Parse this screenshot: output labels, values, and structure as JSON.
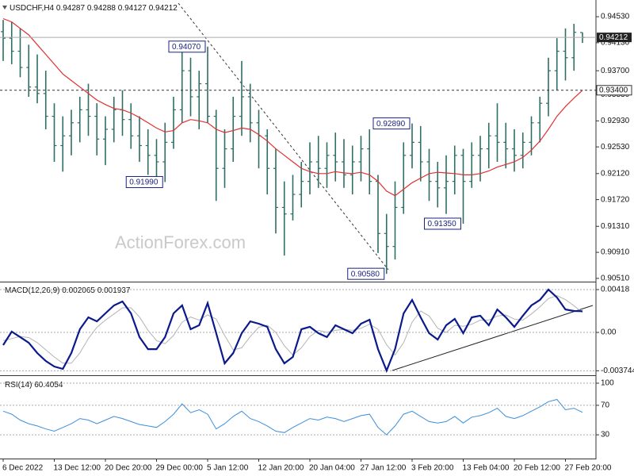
{
  "chart_data": [
    {
      "type": "ohlc",
      "title": "USDCHF,H4",
      "watermark": "ActionForex.com",
      "categories": [
        "6 Dec 2022",
        null,
        null,
        null,
        null,
        null,
        "13 Dec 12:00",
        null,
        null,
        null,
        null,
        null,
        "20 Dec 20:00",
        null,
        null,
        null,
        null,
        null,
        "29 Dec 00:00",
        null,
        null,
        null,
        null,
        null,
        "5 Jan 12:00",
        null,
        null,
        null,
        null,
        null,
        "12 Jan 20:00",
        null,
        null,
        null,
        null,
        null,
        "20 Jan 04:00",
        null,
        null,
        null,
        null,
        null,
        "27 Jan 12:00",
        null,
        null,
        null,
        null,
        null,
        "3 Feb 20:00",
        null,
        null,
        null,
        null,
        null,
        "13 Feb 04:00",
        null,
        null,
        null,
        null,
        null,
        "20 Feb 12:00",
        null,
        null,
        null,
        null,
        null,
        "27 Feb 20:00",
        null,
        null
      ],
      "open": [
        0.943,
        0.942,
        0.94,
        0.9375,
        0.9345,
        0.9335,
        0.93,
        0.9255,
        0.927,
        0.929,
        0.931,
        0.93,
        0.9265,
        0.928,
        0.931,
        0.9295,
        0.927,
        0.9255,
        0.924,
        0.923,
        0.926,
        0.931,
        0.937,
        0.933,
        0.935,
        0.93,
        0.922,
        0.925,
        0.93,
        0.933,
        0.929,
        0.927,
        0.922,
        0.916,
        0.915,
        0.918,
        0.92,
        0.923,
        0.922,
        0.924,
        0.923,
        0.921,
        0.923,
        0.925,
        0.92,
        0.912,
        0.91,
        0.916,
        0.924,
        0.926,
        0.923,
        0.92,
        0.919,
        0.92,
        0.924,
        0.92,
        0.924,
        0.925,
        0.927,
        0.926,
        0.925,
        0.924,
        0.926,
        0.929,
        0.932,
        0.937,
        0.94,
        0.939,
        0.94287
      ],
      "high": [
        0.9448,
        0.9445,
        0.9435,
        0.941,
        0.9395,
        0.937,
        0.932,
        0.93,
        0.931,
        0.933,
        0.935,
        0.932,
        0.93,
        0.933,
        0.934,
        0.932,
        0.93,
        0.928,
        0.9265,
        0.929,
        0.933,
        0.94,
        0.939,
        0.937,
        0.9407,
        0.931,
        0.928,
        0.933,
        0.9385,
        0.935,
        0.931,
        0.928,
        0.925,
        0.92,
        0.921,
        0.923,
        0.926,
        0.927,
        0.926,
        0.9275,
        0.9265,
        0.9255,
        0.927,
        0.928,
        0.921,
        0.915,
        0.92,
        0.926,
        0.9289,
        0.9285,
        0.925,
        0.923,
        0.924,
        0.9255,
        0.925,
        0.926,
        0.927,
        0.929,
        0.932,
        0.929,
        0.928,
        0.9275,
        0.93,
        0.933,
        0.939,
        0.942,
        0.9435,
        0.9442,
        0.94288
      ],
      "low": [
        0.9385,
        0.938,
        0.936,
        0.933,
        0.932,
        0.928,
        0.923,
        0.9215,
        0.924,
        0.926,
        0.927,
        0.924,
        0.9225,
        0.926,
        0.927,
        0.925,
        0.923,
        0.921,
        0.9205,
        0.9199,
        0.925,
        0.929,
        0.93,
        0.928,
        0.929,
        0.917,
        0.919,
        0.923,
        0.927,
        0.926,
        0.922,
        0.918,
        0.912,
        0.9086,
        0.914,
        0.916,
        0.918,
        0.919,
        0.919,
        0.92,
        0.919,
        0.918,
        0.92,
        0.918,
        0.909,
        0.9058,
        0.908,
        0.915,
        0.922,
        0.92,
        0.917,
        0.916,
        0.915,
        0.918,
        0.9135,
        0.919,
        0.92,
        0.922,
        0.923,
        0.922,
        0.9215,
        0.922,
        0.924,
        0.926,
        0.93,
        0.934,
        0.9355,
        0.937,
        0.94127
      ],
      "close": [
        0.942,
        0.94,
        0.9375,
        0.9345,
        0.9335,
        0.93,
        0.9255,
        0.927,
        0.929,
        0.931,
        0.93,
        0.9265,
        0.928,
        0.931,
        0.9295,
        0.927,
        0.9255,
        0.924,
        0.923,
        0.926,
        0.931,
        0.937,
        0.933,
        0.935,
        0.93,
        0.922,
        0.925,
        0.93,
        0.933,
        0.929,
        0.927,
        0.922,
        0.916,
        0.915,
        0.918,
        0.92,
        0.923,
        0.922,
        0.924,
        0.923,
        0.921,
        0.923,
        0.925,
        0.92,
        0.912,
        0.91,
        0.916,
        0.924,
        0.926,
        0.923,
        0.92,
        0.919,
        0.92,
        0.924,
        0.92,
        0.924,
        0.925,
        0.927,
        0.926,
        0.925,
        0.924,
        0.926,
        0.929,
        0.932,
        0.937,
        0.94,
        0.939,
        0.9429,
        0.94212
      ],
      "color": "#2f6e64",
      "ma": {
        "color": "#e03030",
        "values": [
          0.945,
          0.9445,
          0.9435,
          0.9425,
          0.941,
          0.9395,
          0.938,
          0.9365,
          0.9355,
          0.9345,
          0.9335,
          0.9325,
          0.9318,
          0.9312,
          0.931,
          0.9305,
          0.9298,
          0.929,
          0.9282,
          0.9276,
          0.9278,
          0.929,
          0.9295,
          0.9293,
          0.929,
          0.928,
          0.9275,
          0.9278,
          0.9282,
          0.928,
          0.9272,
          0.9262,
          0.925,
          0.924,
          0.923,
          0.922,
          0.9215,
          0.9212,
          0.9212,
          0.9215,
          0.9213,
          0.9212,
          0.9214,
          0.921,
          0.92,
          0.9185,
          0.9178,
          0.9188,
          0.9198,
          0.9205,
          0.9212,
          0.9214,
          0.9213,
          0.9212,
          0.921,
          0.921,
          0.9212,
          0.9216,
          0.9222,
          0.9226,
          0.923,
          0.9237,
          0.9248,
          0.9262,
          0.928,
          0.93,
          0.9315,
          0.9328,
          0.934
        ]
      },
      "ylim": [
        0.9046,
        0.9475
      ],
      "yticks": [
        {
          "value": 0.9453,
          "label": "0.94530"
        },
        {
          "value": 0.9413,
          "label": "0.94130"
        },
        {
          "value": 0.937,
          "label": "0.93700"
        },
        {
          "value": 0.9333,
          "label": "0.93330"
        },
        {
          "value": 0.9293,
          "label": "0.92930"
        },
        {
          "value": 0.9253,
          "label": "0.92530"
        },
        {
          "value": 0.9212,
          "label": "0.92120"
        },
        {
          "value": 0.9172,
          "label": "0.91720"
        },
        {
          "value": 0.9131,
          "label": "0.91310"
        },
        {
          "value": 0.9091,
          "label": "0.90910"
        },
        {
          "value": 0.9051,
          "label": "0.90510"
        }
      ],
      "levels": [
        {
          "value": 0.934,
          "label": "0.93400"
        }
      ],
      "annotations": [
        {
          "value": 0.9407,
          "label": "0.94070",
          "bar": 24
        },
        {
          "value": 0.9199,
          "label": "0.91990",
          "bar": 19
        },
        {
          "value": 0.9289,
          "label": "0.92890",
          "bar": 48
        },
        {
          "value": 0.9135,
          "label": "0.91350",
          "bar": 54
        },
        {
          "value": 0.9058,
          "label": "0.90580",
          "bar": 45
        }
      ]
    },
    {
      "type": "macd",
      "title": "MACD(12,26,9)",
      "macd": {
        "color": "#0a1a8c",
        "values": [
          -0.00124,
          8e-05,
          -0.00046,
          -0.00101,
          -0.00201,
          -0.00279,
          -0.00333,
          -0.00356,
          -0.00201,
          0.00031,
          0.00147,
          0.00108,
          0.00186,
          0.00263,
          0.00302,
          0.00186,
          -0.00046,
          -0.00163,
          -0.00163,
          -0.00046,
          0.00186,
          0.00263,
          0.00031,
          0.0007,
          0.00286,
          -8e-05,
          -0.00302,
          -0.00201,
          -8e-05,
          0.00108,
          0.00085,
          0.00054,
          -0.00163,
          -0.00302,
          -0.0024,
          0.00031,
          0.00054,
          -8e-05,
          -0.00046,
          0.0007,
          0.00031,
          -8e-05,
          0.00085,
          0.00124,
          -0.00163,
          -0.00372,
          -0.00163,
          0.00186,
          0.00317,
          0.00147,
          -8e-05,
          -0.0007,
          0.0007,
          0.00132,
          -8e-05,
          0.00147,
          0.00163,
          0.0007,
          0.00224,
          0.00147,
          0.00054,
          0.00163,
          0.00263,
          0.00317,
          0.00418,
          0.00341,
          0.00224,
          0.00209,
          0.002065
        ]
      },
      "signal": {
        "color": "#b4b4b4",
        "values": [
          -0.0008,
          -0.0006,
          -0.0004,
          -0.0005,
          -0.001,
          -0.0017,
          -0.0024,
          -0.003,
          -0.003,
          -0.002,
          -0.0006,
          0.0005,
          0.0012,
          0.0018,
          0.0024,
          0.0024,
          0.0015,
          0.0002,
          -0.0008,
          -0.0011,
          -0.0003,
          0.001,
          0.0015,
          0.0012,
          0.0017,
          0.0013,
          -0.0003,
          -0.0017,
          -0.0015,
          -0.0004,
          0.0005,
          0.0007,
          0,
          -0.0013,
          -0.0022,
          -0.0015,
          -0.0004,
          0.0002,
          0,
          0.0002,
          0.0003,
          0.0002,
          0.0004,
          0.0008,
          0.0003,
          -0.0012,
          -0.0022,
          -0.001,
          0.001,
          0.0021,
          0.0016,
          0.0004,
          0,
          0.0007,
          0.0006,
          0.0008,
          0.0012,
          0.0012,
          0.0016,
          0.0017,
          0.0013,
          0.0012,
          0.0018,
          0.0025,
          0.0033,
          0.0036,
          0.0032,
          0.0026,
          0.001937
        ]
      },
      "ylim": [
        -0.00418,
        0.0048
      ],
      "yticks": [
        0.00418,
        {
          "value": 0,
          "label": "0.00"
        },
        -0.003744
      ],
      "grid": true
    },
    {
      "type": "line",
      "title": "RSI(14)",
      "color": "#3c8fdc",
      "values": [
        62,
        58,
        50,
        45,
        42,
        38,
        35,
        40,
        45,
        52,
        50,
        45,
        50,
        55,
        52,
        48,
        44,
        42,
        40,
        48,
        58,
        72,
        60,
        64,
        58,
        38,
        45,
        55,
        62,
        52,
        48,
        42,
        35,
        33,
        40,
        46,
        52,
        50,
        54,
        52,
        48,
        52,
        56,
        58,
        40,
        30,
        42,
        58,
        62,
        55,
        48,
        46,
        48,
        55,
        46,
        54,
        56,
        60,
        66,
        55,
        52,
        56,
        62,
        68,
        75,
        78,
        64,
        66,
        60.4054
      ],
      "ylim": [
        0,
        100
      ],
      "yticks": [
        100,
        70,
        30
      ],
      "grid": true
    }
  ]
}
